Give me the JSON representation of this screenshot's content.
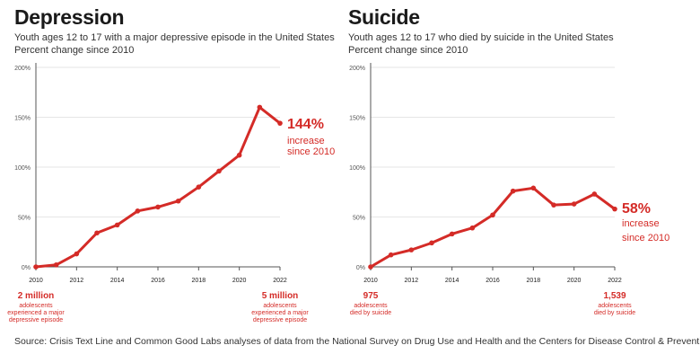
{
  "colors": {
    "accent": "#d42b27",
    "axis": "#555555",
    "grid": "#e6e6e6",
    "text": "#1a1a1a"
  },
  "left": {
    "title": "Depression",
    "subtitle1": "Youth ages 12 to 17 with a major depressive episode in the United States",
    "subtitle2": "Percent change since 2010"
  },
  "right": {
    "title": "Suicide",
    "subtitle1": "Youth ages 12 to 17 who died by suicide  in the United States",
    "subtitle2": "Percent change since 2010"
  },
  "source": "Source: Crisis Text Line and Common Good Labs analyses of data from the National Survey on Drug Use and Health and the Centers for Disease Control & Prevention.",
  "chart_data": [
    {
      "type": "line",
      "title": "Depression",
      "x": [
        2010,
        2011,
        2012,
        2013,
        2014,
        2015,
        2016,
        2017,
        2018,
        2019,
        2020,
        2021,
        2022
      ],
      "series": [
        {
          "values": [
            0,
            2,
            13,
            34,
            42,
            56,
            60,
            66,
            80,
            96,
            112,
            160,
            144
          ]
        }
      ],
      "xticks": [
        "2010",
        "2012",
        "2014",
        "2016",
        "2018",
        "2020",
        "2022"
      ],
      "yticks": [
        "0%",
        "50%",
        "100%",
        "150%",
        "200%"
      ],
      "ylim": [
        0,
        200
      ],
      "end_annotation": {
        "value": "144%",
        "line1": "increase",
        "line2": "since 2010"
      },
      "start_note": [
        "2 million",
        "adolescents",
        "experienced a major",
        "depressive episode"
      ],
      "end_note": [
        "5 million",
        "adolescents",
        "experienced a major",
        "depressive episode"
      ]
    },
    {
      "type": "line",
      "title": "Suicide",
      "x": [
        2010,
        2011,
        2012,
        2013,
        2014,
        2015,
        2016,
        2017,
        2018,
        2019,
        2020,
        2021,
        2022
      ],
      "series": [
        {
          "values": [
            0,
            12,
            17,
            24,
            33,
            39,
            52,
            76,
            79,
            62,
            63,
            73,
            58
          ]
        }
      ],
      "xticks": [
        "2010",
        "2012",
        "2014",
        "2016",
        "2018",
        "2020",
        "2022"
      ],
      "yticks": [
        "0%",
        "50%",
        "100%",
        "150%",
        "200%"
      ],
      "ylim": [
        0,
        200
      ],
      "end_annotation": {
        "value": "58%",
        "line1": "increase",
        "line2": "since 2010"
      },
      "start_note": [
        "975",
        "adolescents",
        "died by suicide"
      ],
      "end_note": [
        "1,539",
        "adolescents",
        "died by suicide"
      ]
    }
  ]
}
